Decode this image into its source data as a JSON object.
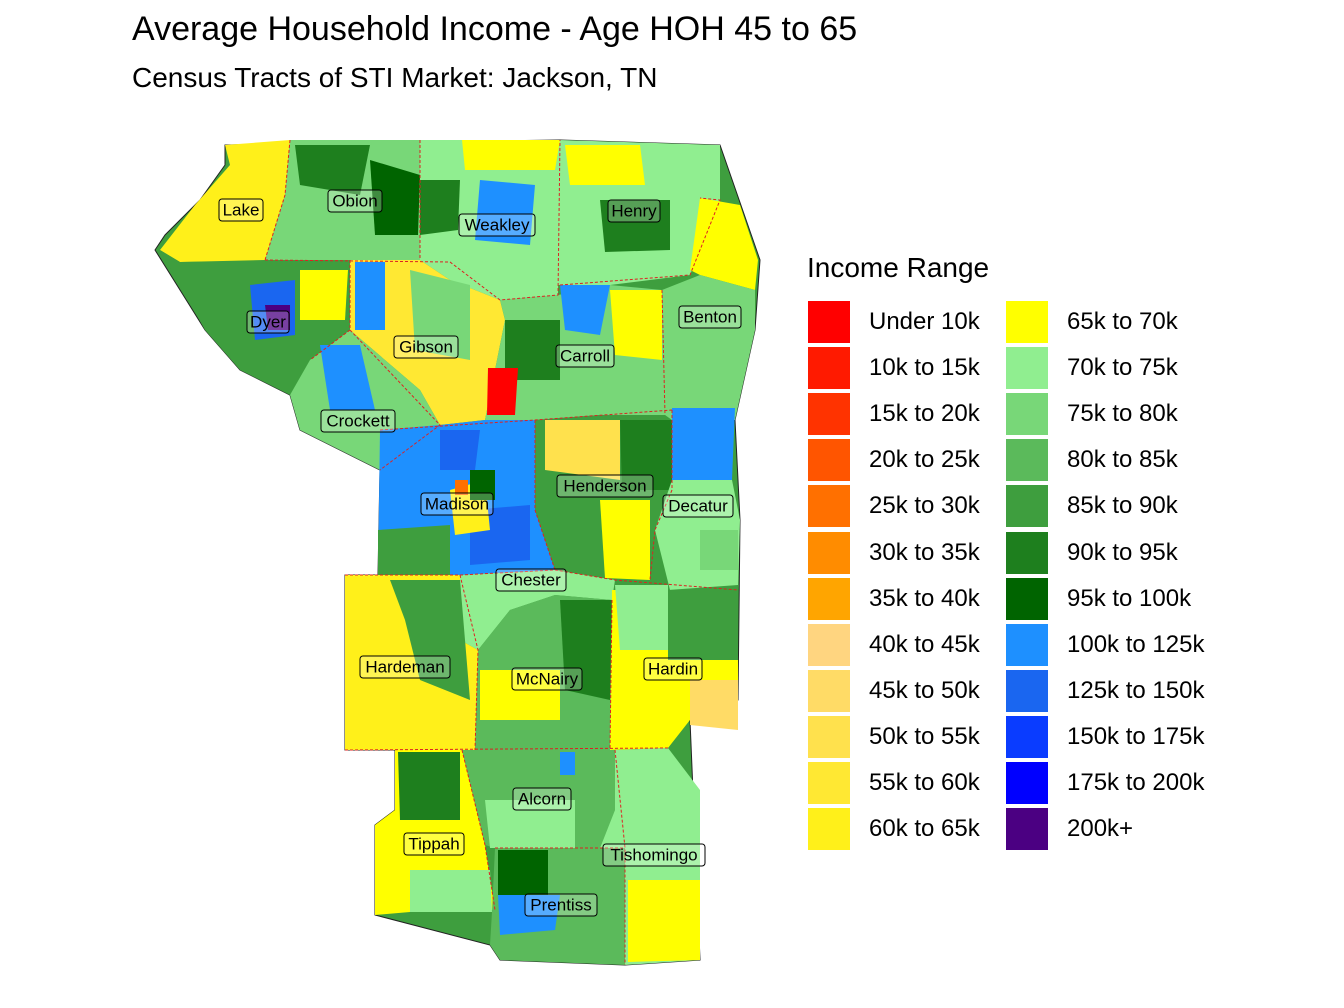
{
  "title": "Average Household Income - Age HOH 45 to 65",
  "subtitle": "Census Tracts of STI Market: Jackson, TN",
  "legend": {
    "title": "Income Range",
    "items": [
      {
        "label": "Under 10k",
        "color": "#FF0000"
      },
      {
        "label": "10k to 15k",
        "color": "#FF1A00"
      },
      {
        "label": "15k to 20k",
        "color": "#FF3300"
      },
      {
        "label": "20k to 25k",
        "color": "#FF5500"
      },
      {
        "label": "25k to 30k",
        "color": "#FF7000"
      },
      {
        "label": "30k to 35k",
        "color": "#FF8C00"
      },
      {
        "label": "35k to 40k",
        "color": "#FFA500"
      },
      {
        "label": "40k to 45k",
        "color": "#FFD580"
      },
      {
        "label": "45k to 50k",
        "color": "#FFDB66"
      },
      {
        "label": "50k to 55k",
        "color": "#FFE14D"
      },
      {
        "label": "55k to 60k",
        "color": "#FFE833"
      },
      {
        "label": "60k to 65k",
        "color": "#FFF01A"
      },
      {
        "label": "65k to 70k",
        "color": "#FFFF00"
      },
      {
        "label": "70k to 75k",
        "color": "#90EE90"
      },
      {
        "label": "75k to 80k",
        "color": "#78D778"
      },
      {
        "label": "80k to 85k",
        "color": "#5BBA5B"
      },
      {
        "label": "85k to 90k",
        "color": "#3E9E3E"
      },
      {
        "label": "90k to 95k",
        "color": "#1E7F1E"
      },
      {
        "label": "95k to 100k",
        "color": "#006400"
      },
      {
        "label": "100k to 125k",
        "color": "#1E90FF"
      },
      {
        "label": "125k to 150k",
        "color": "#1A66F0"
      },
      {
        "label": "150k to 175k",
        "color": "#0A3CFF"
      },
      {
        "label": "175k to 200k",
        "color": "#0000FF"
      },
      {
        "label": "200k+",
        "color": "#4B0082"
      }
    ]
  },
  "counties": [
    {
      "name": "Lake",
      "band": "60k to 65k"
    },
    {
      "name": "Obion",
      "band": "75k to 80k"
    },
    {
      "name": "Weakley",
      "band": "70k to 75k"
    },
    {
      "name": "Henry",
      "band": "70k to 75k"
    },
    {
      "name": "Dyer",
      "band": "85k to 90k"
    },
    {
      "name": "Gibson",
      "band": "65k to 70k"
    },
    {
      "name": "Carroll",
      "band": "80k to 85k"
    },
    {
      "name": "Benton",
      "band": "75k to 80k"
    },
    {
      "name": "Crockett",
      "band": "80k to 85k"
    },
    {
      "name": "Madison",
      "band": "100k to 125k"
    },
    {
      "name": "Henderson",
      "band": "85k to 90k"
    },
    {
      "name": "Decatur",
      "band": "75k to 80k"
    },
    {
      "name": "Chester",
      "band": "70k to 75k"
    },
    {
      "name": "Hardeman",
      "band": "60k to 65k"
    },
    {
      "name": "McNairy",
      "band": "80k to 85k"
    },
    {
      "name": "Hardin",
      "band": "60k to 65k"
    },
    {
      "name": "Alcorn",
      "band": "70k to 75k"
    },
    {
      "name": "Tippah",
      "band": "60k to 65k"
    },
    {
      "name": "Tishomingo",
      "band": "60k to 65k"
    },
    {
      "name": "Prentiss",
      "band": "80k to 85k"
    }
  ]
}
